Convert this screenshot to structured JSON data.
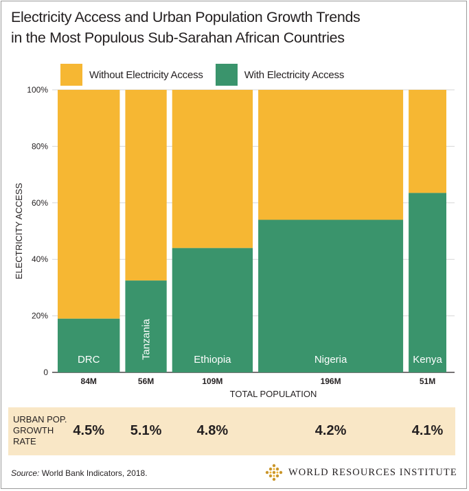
{
  "title_line1": "Electricity Access and Urban Population Growth Trends",
  "title_line2": "in the Most Populous Sub-Sarahan African Countries",
  "colors": {
    "without": "#f6b733",
    "with": "#3a946c",
    "band": "#f9e7c6",
    "grid": "#d6d6d6"
  },
  "chart_data": {
    "type": "bar",
    "subtype": "marimekko",
    "xlabel": "TOTAL POPULATION",
    "ylabel": "ELECTRICITY ACCESS",
    "ylim": [
      0,
      100
    ],
    "yticks": [
      "0",
      "20%",
      "40%",
      "60%",
      "80%",
      "100%"
    ],
    "legend": [
      {
        "name": "Without Electricity Access",
        "key": "without"
      },
      {
        "name": "With Electricity Access",
        "key": "with"
      }
    ],
    "countries": [
      {
        "name": "DRC",
        "population_m": 84,
        "population_label": "84M",
        "with_access": 19,
        "growth": "4.5%",
        "vertical": false
      },
      {
        "name": "Tanzania",
        "population_m": 56,
        "population_label": "56M",
        "with_access": 32.5,
        "growth": "5.1%",
        "vertical": true
      },
      {
        "name": "Ethiopia",
        "population_m": 109,
        "population_label": "109M",
        "with_access": 44,
        "growth": "4.8%",
        "vertical": false
      },
      {
        "name": "Nigeria",
        "population_m": 196,
        "population_label": "196M",
        "with_access": 54,
        "growth": "4.2%",
        "vertical": false
      },
      {
        "name": "Kenya",
        "population_m": 51,
        "population_label": "51M",
        "with_access": 63.5,
        "growth": "4.1%",
        "vertical": false
      }
    ]
  },
  "growth_row": {
    "label_line1": "URBAN POP.",
    "label_line2": "GROWTH",
    "label_line3": "RATE"
  },
  "source": {
    "prefix": "Source:",
    "text": " World Bank Indicators, 2018."
  },
  "org_name": "WORLD RESOURCES INSTITUTE"
}
